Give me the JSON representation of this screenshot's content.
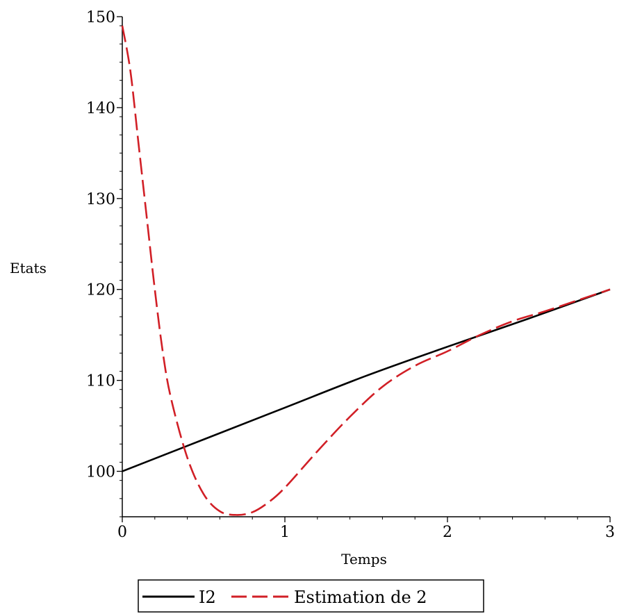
{
  "chart_data": {
    "type": "line",
    "xlabel": "Temps",
    "ylabel": "Etats",
    "xlim": [
      0,
      3
    ],
    "ylim": [
      95,
      150
    ],
    "x_ticks": [
      0,
      1,
      2,
      3
    ],
    "y_ticks": [
      100,
      110,
      120,
      130,
      140,
      150
    ],
    "legend_position": "bottom",
    "grid": false,
    "series": [
      {
        "name": "I2",
        "color": "#000000",
        "style": "solid",
        "x": [
          0,
          0.5,
          1.0,
          1.5,
          2.0,
          2.5,
          3.0
        ],
        "y": [
          100.0,
          103.5,
          107.0,
          110.5,
          113.7,
          116.8,
          120.0
        ]
      },
      {
        "name": "Estimation de 2",
        "color": "#d11f26",
        "style": "dashed",
        "x": [
          0,
          0.05,
          0.1,
          0.15,
          0.2,
          0.25,
          0.3,
          0.4,
          0.5,
          0.6,
          0.7,
          0.8,
          0.9,
          1.0,
          1.2,
          1.4,
          1.6,
          1.8,
          2.0,
          2.2,
          2.4,
          2.6,
          2.8,
          3.0
        ],
        "y": [
          149,
          144,
          136,
          128,
          120,
          113,
          108,
          101.5,
          97.5,
          95.6,
          95.2,
          95.5,
          96.6,
          98.2,
          102.2,
          106.0,
          109.3,
          111.6,
          113.2,
          115.0,
          116.5,
          117.6,
          118.8,
          120.0
        ]
      }
    ]
  }
}
